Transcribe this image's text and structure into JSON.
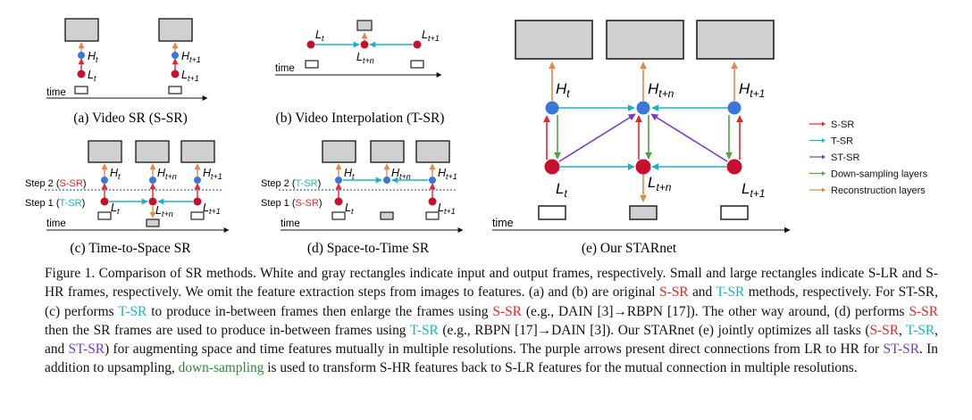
{
  "colors": {
    "red": "#e8262a",
    "teal": "#19b4c4",
    "purple": "#7b39c9",
    "green": "#4da63a",
    "orange": "#e08a4a",
    "node_red": "#c8102e",
    "node_blue": "#3a78d8",
    "box_fill": "#d0d0d0"
  },
  "panels": {
    "a": {
      "caption": "(a) Video SR (S-SR)",
      "time": "time"
    },
    "b": {
      "caption": "(b) Video Interpolation (T-SR)",
      "time": "time"
    },
    "c": {
      "caption": "(c) Time-to-Space SR",
      "time": "time",
      "step2": "Step 2 (",
      "step2_tag": "S-SR",
      "step1": "Step 1 (",
      "step1_tag": "T-SR",
      "close": ")"
    },
    "d": {
      "caption": "(d) Space-to-Time SR",
      "time": "time",
      "step2": "Step 2 (",
      "step2_tag": "T-SR",
      "step1": "Step 1 (",
      "step1_tag": "S-SR",
      "close": ")"
    },
    "e": {
      "caption": "(e) Our STARnet",
      "time": "time"
    }
  },
  "labels": {
    "H": "H",
    "L": "L",
    "t": "t",
    "t1": "t+1",
    "tn": "t+n"
  },
  "legend": [
    {
      "label": "S-SR",
      "color": "#e8262a"
    },
    {
      "label": "T-SR",
      "color": "#19b4c4"
    },
    {
      "label": "ST-SR",
      "color": "#7b39c9"
    },
    {
      "label": "Down-sampling layers",
      "color": "#4da63a"
    },
    {
      "label": "Reconstruction layers",
      "color": "#e08a4a"
    }
  ],
  "caption": {
    "p1": "Figure 1. Comparison of SR methods. White and gray rectangles indicate input and output frames, respectively. Small and large rectangles indicate S-LR and S-HR frames, respectively. We omit the feature extraction steps from images to features. (a) and (b) are original ",
    "ssr": "S-SR",
    "and": " and ",
    "tsr": "T-SR",
    "p2": " methods, respectively. For ST-SR, (c) performs ",
    "p3": " to produce in-between frames then enlarge the frames using ",
    "p4": " (e.g., DAIN [3]→RBPN [17]). The other way around, (d) performs ",
    "p5": " then the SR frames are used to produce in-between frames using ",
    "p6": " (e.g., RBPN [17]→DAIN [3]). Our STARnet (e) jointly optimizes all tasks (",
    "comma": ", ",
    "and_oxford": ", and ",
    "stsr": "ST-SR",
    "p7": ") for augmenting space and time features mutually in multiple resolutions. The purple arrows present direct connections from LR to HR for ",
    "p8": ". In addition to upsampling, ",
    "down": "down-sampling",
    "p9": " is used to transform S-HR features back to S-LR features for the mutual connection in multiple resolutions."
  }
}
